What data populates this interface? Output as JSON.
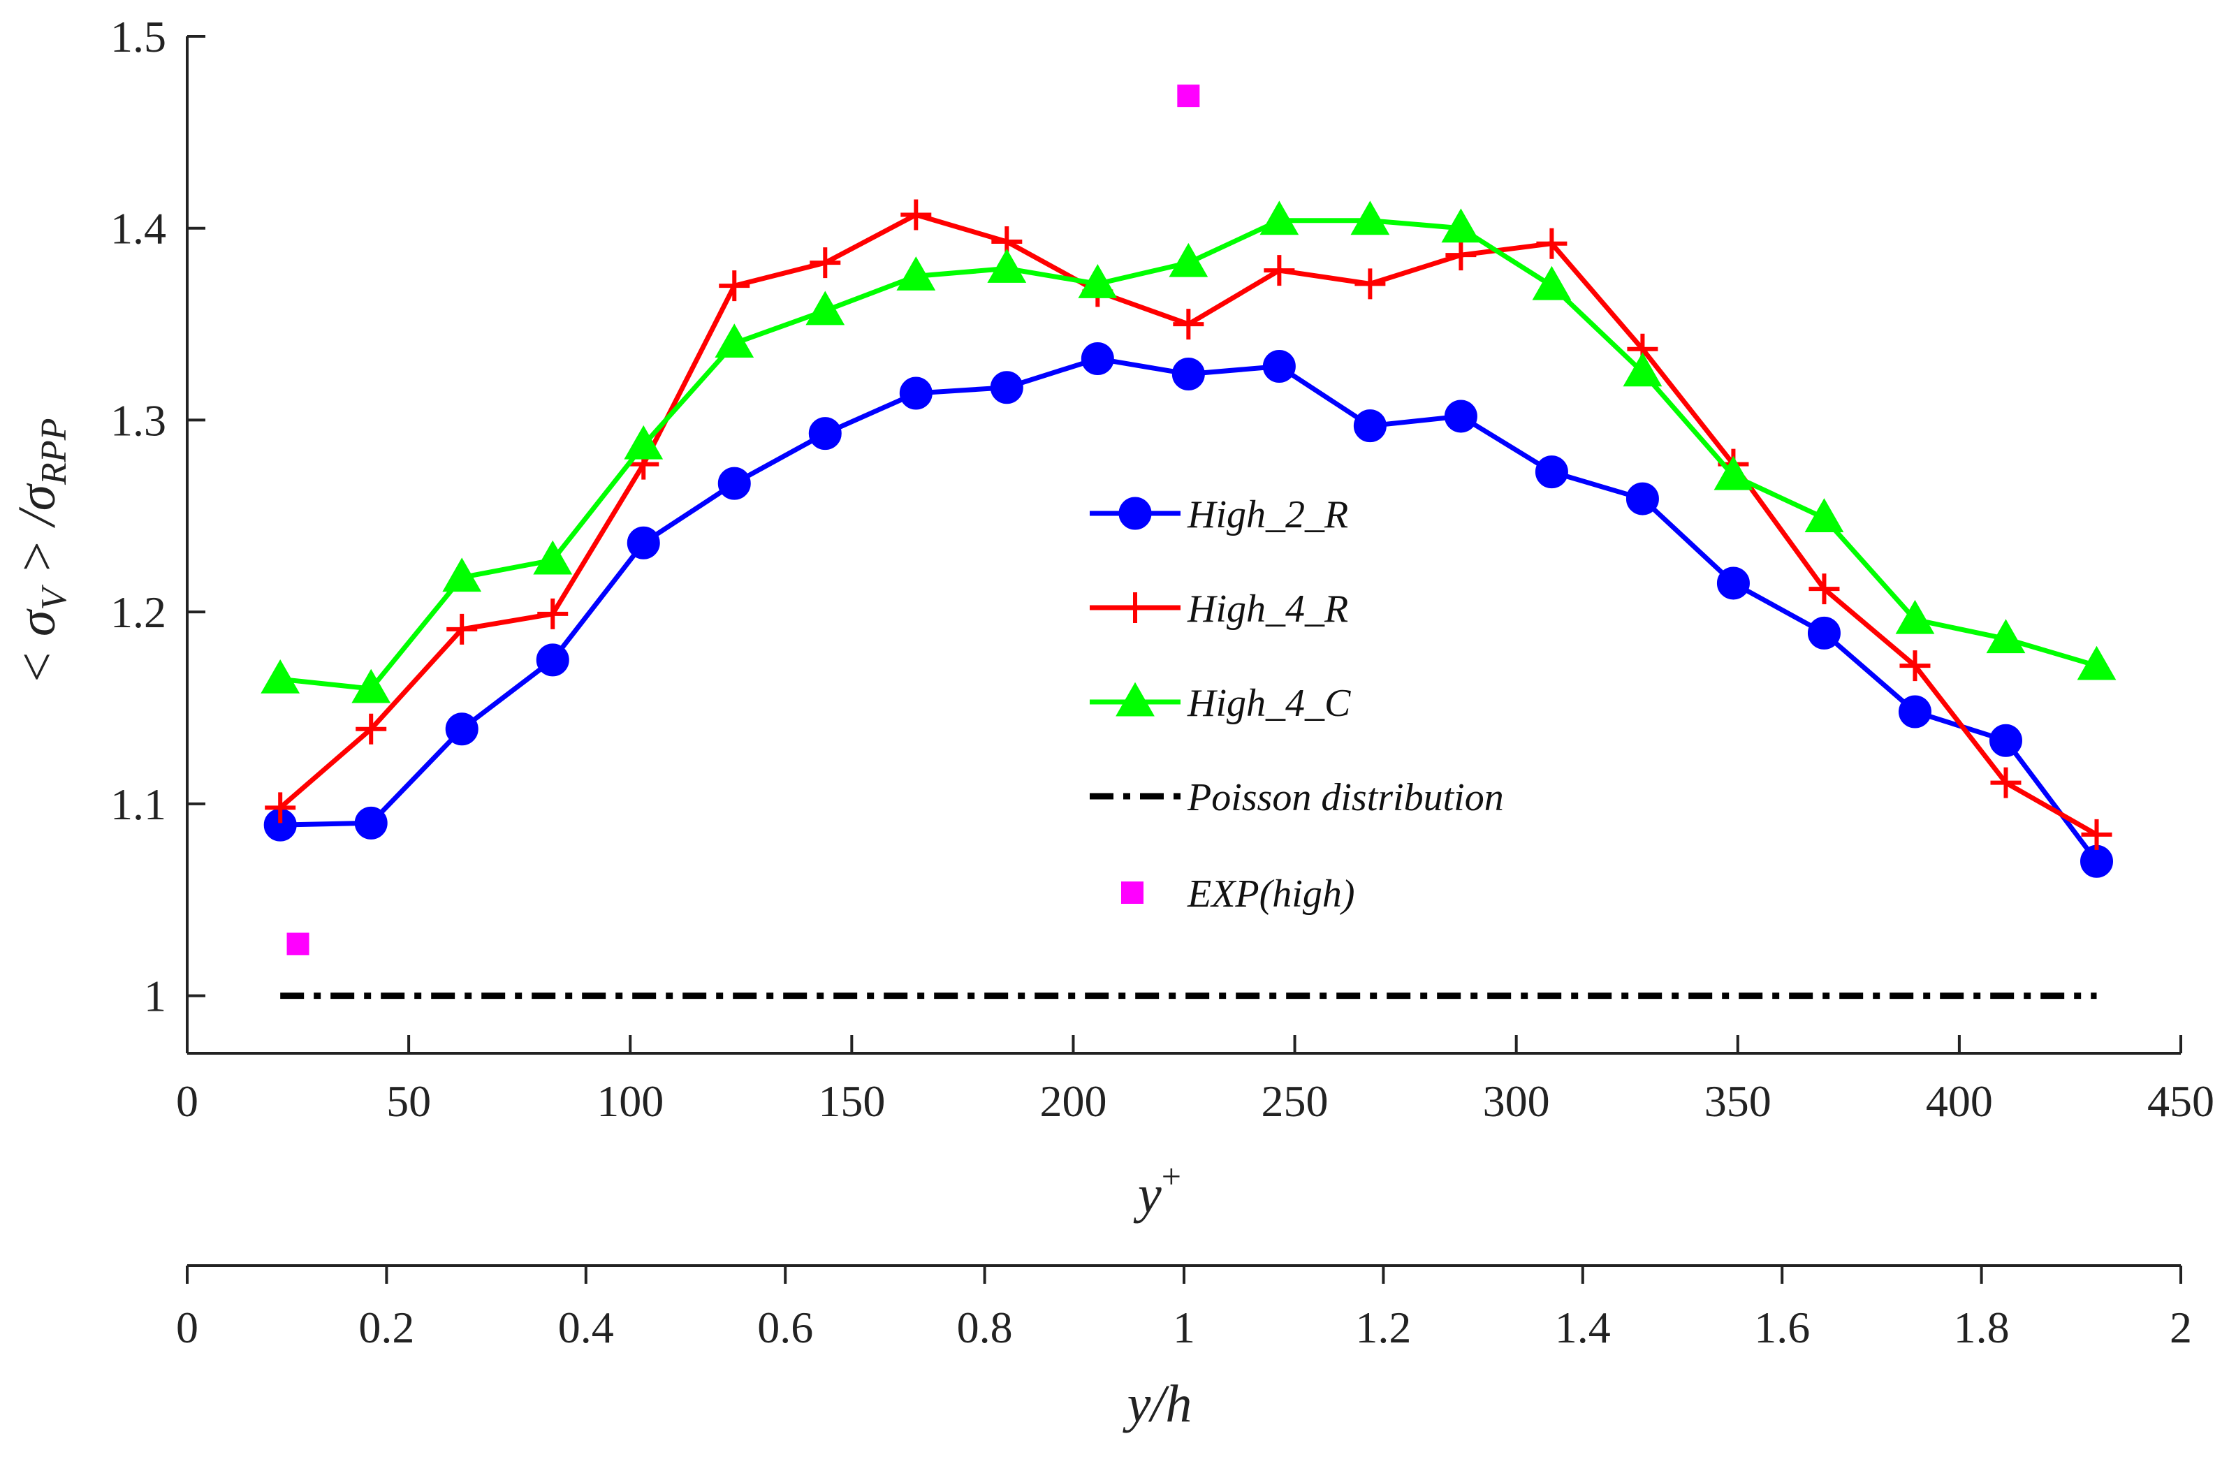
{
  "chart_data": {
    "type": "line",
    "title": "",
    "xlabel": "y^+",
    "ylabel": "< σ_V > /σ_RPP",
    "xlim": [
      0,
      450
    ],
    "ylim": [
      0.97,
      1.5
    ],
    "xticks": [
      0,
      50,
      100,
      150,
      200,
      250,
      300,
      350,
      400,
      450
    ],
    "xtick_labels": [
      "0",
      "50",
      "100",
      "150",
      "200",
      "250",
      "300",
      "350",
      "400",
      "450"
    ],
    "yticks": [
      1,
      1.1,
      1.2,
      1.3,
      1.4,
      1.5
    ],
    "ytick_labels": [
      "1",
      "1.1",
      "1.2",
      "1.3",
      "1.4",
      "1.5"
    ],
    "secondary_axis": {
      "label": "y/h",
      "lim": [
        0,
        2
      ],
      "ticks": [
        0,
        0.2,
        0.4,
        0.6,
        0.8,
        1,
        1.2,
        1.4,
        1.6,
        1.8,
        2
      ],
      "tick_labels": [
        "0",
        "0.2",
        "0.4",
        "0.6",
        "0.8",
        "1",
        "1.2",
        "1.4",
        "1.6",
        "1.8",
        "2"
      ]
    },
    "legend_position": "center",
    "x": [
      21,
      41.5,
      62,
      82.5,
      103,
      123.5,
      144,
      164.5,
      185,
      205.5,
      226,
      246.5,
      267,
      287.5,
      308,
      328.5,
      349,
      369.5,
      390,
      410.5,
      431
    ],
    "series": [
      {
        "name": "High_2_R",
        "color": "#0000ff",
        "marker": "circle",
        "values": [
          1.089,
          1.09,
          1.139,
          1.175,
          1.236,
          1.267,
          1.293,
          1.314,
          1.317,
          1.332,
          1.324,
          1.328,
          1.297,
          1.302,
          1.273,
          1.259,
          1.215,
          1.189,
          1.148,
          1.133,
          1.07
        ]
      },
      {
        "name": "High_4_R",
        "color": "#ff0000",
        "marker": "plus",
        "values": [
          1.098,
          1.139,
          1.191,
          1.199,
          1.277,
          1.37,
          1.382,
          1.407,
          1.393,
          1.367,
          1.35,
          1.378,
          1.371,
          1.386,
          1.392,
          1.337,
          1.277,
          1.212,
          1.172,
          1.111,
          1.084
        ]
      },
      {
        "name": "High_4_C",
        "color": "#00ff00",
        "marker": "triangle",
        "values": [
          1.165,
          1.16,
          1.218,
          1.227,
          1.287,
          1.34,
          1.357,
          1.375,
          1.379,
          1.371,
          1.382,
          1.404,
          1.404,
          1.4,
          1.37,
          1.325,
          1.271,
          1.249,
          1.196,
          1.186,
          1.172
        ]
      },
      {
        "name": "Poisson distribution",
        "color": "#000000",
        "marker": "none",
        "style": "dash-dot",
        "x": [
          21,
          431
        ],
        "values": [
          1,
          1
        ]
      },
      {
        "name": "EXP(high)",
        "color": "#ff00ff",
        "marker": "square",
        "style": "none",
        "x": [
          25,
          226
        ],
        "values": [
          1.027,
          1.469
        ]
      }
    ]
  }
}
